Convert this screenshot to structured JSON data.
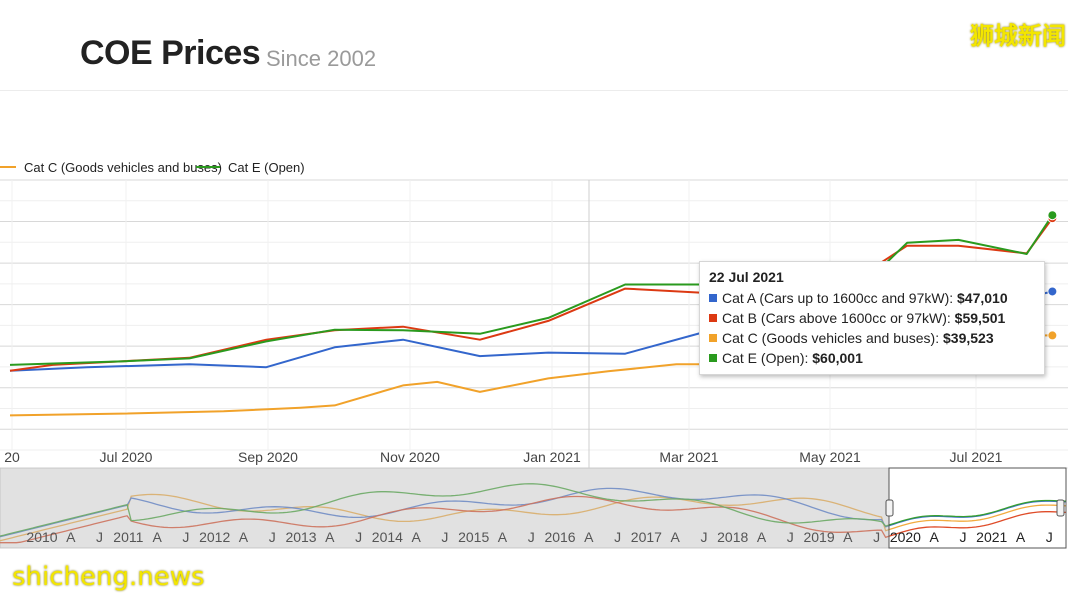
{
  "header": {
    "title": "COE Prices",
    "subtitle": "Since 2002"
  },
  "watermark": {
    "cn": "狮城新闻",
    "en": "shicheng.news"
  },
  "colors": {
    "cat_a": "#3366cc",
    "cat_b": "#dc3912",
    "cat_c": "#f1a22a",
    "cat_e": "#2a9a1e"
  },
  "legend": {
    "items": [
      {
        "label": "Cat C (Goods vehicles and buses)",
        "color": "#f1a22a"
      },
      {
        "label": "Cat E (Open)",
        "color": "#2a9a1e"
      }
    ]
  },
  "tooltip": {
    "date": "22 Jul 2021",
    "rows": [
      {
        "label": "Cat A (Cars up to 1600cc and 97kW):",
        "value": "$47,010",
        "color": "#3366cc"
      },
      {
        "label": "Cat B (Cars above 1600cc or 97kW):",
        "value": "$59,501",
        "color": "#dc3912"
      },
      {
        "label": "Cat C (Goods vehicles and buses):",
        "value": "$39,523",
        "color": "#f1a22a"
      },
      {
        "label": "Cat E (Open):",
        "value": "$60,001",
        "color": "#2a9a1e"
      }
    ]
  },
  "chart_data": {
    "type": "line",
    "title": "COE Prices",
    "subtitle": "Since 2002",
    "x_axis_labels": [
      "20",
      "Jul 2020",
      "Sep 2020",
      "Nov 2020",
      "Jan 2021",
      "Mar 2021",
      "May 2021",
      "Jul 2021"
    ],
    "x_axis_note": "dates as fractional years",
    "y_unit": "SGD",
    "ylim": [
      20000,
      66000
    ],
    "grid": true,
    "legend_position": "top",
    "series": [
      {
        "name": "Cat A (Cars up to 1600cc and 97kW)",
        "color": "#3366cc",
        "x": [
          2020.33,
          2020.42,
          2020.54,
          2020.63,
          2020.71,
          2020.79,
          2020.88,
          2020.96,
          2021.05,
          2021.14,
          2021.21,
          2021.26,
          2021.33,
          2021.38,
          2021.44,
          2021.52,
          2021.55
        ],
        "y": [
          33500,
          34100,
          34600,
          34100,
          37500,
          38800,
          36000,
          36600,
          36400,
          40000,
          40600,
          40600,
          40800,
          39800,
          40600,
          46000,
          47010
        ]
      },
      {
        "name": "Cat B (Cars above 1600cc or 97kW)",
        "color": "#dc3912",
        "x": [
          2020.33,
          2020.38,
          2020.54,
          2020.63,
          2020.71,
          2020.79,
          2020.88,
          2020.96,
          2021.05,
          2021.14,
          2021.21,
          2021.26,
          2021.38,
          2021.44,
          2021.52,
          2021.55
        ],
        "y": [
          33500,
          34500,
          35700,
          38800,
          40400,
          41000,
          38800,
          42000,
          47500,
          46800,
          44000,
          43500,
          54800,
          54800,
          53500,
          59501
        ]
      },
      {
        "name": "Cat C (Goods vehicles and buses)",
        "color": "#f1a22a",
        "x": [
          2020.33,
          2020.46,
          2020.58,
          2020.67,
          2020.71,
          2020.79,
          2020.83,
          2020.88,
          2020.96,
          2021.03,
          2021.11,
          2021.15,
          2021.21,
          2021.26,
          2021.33,
          2021.38,
          2021.44,
          2021.52,
          2021.55
        ],
        "y": [
          25900,
          26200,
          26600,
          27200,
          27600,
          31000,
          31600,
          29900,
          32200,
          33400,
          34600,
          34600,
          42000,
          38000,
          38600,
          39400,
          40000,
          39500,
          39523
        ]
      },
      {
        "name": "Cat E (Open)",
        "color": "#2a9a1e",
        "x": [
          2020.33,
          2020.46,
          2020.54,
          2020.63,
          2020.71,
          2020.79,
          2020.88,
          2020.96,
          2021.05,
          2021.14,
          2021.21,
          2021.26,
          2021.33,
          2021.38,
          2021.44,
          2021.52,
          2021.55
        ],
        "y": [
          34500,
          35100,
          35600,
          38500,
          40500,
          40400,
          39800,
          42500,
          48200,
          48200,
          48400,
          46000,
          48300,
          55300,
          55800,
          53400,
          60001
        ]
      }
    ],
    "navigator": {
      "x_axis_labels": [
        "2010",
        "A",
        "J",
        "2011",
        "A",
        "J",
        "2012",
        "A",
        "J",
        "2013",
        "A",
        "J",
        "2014",
        "A",
        "J",
        "2015",
        "A",
        "J",
        "2016",
        "A",
        "J",
        "2017",
        "A",
        "J",
        "2018",
        "A",
        "J",
        "2019",
        "A",
        "J",
        "2020",
        "A",
        "J",
        "2021",
        "A",
        "J"
      ],
      "selected_range": [
        "2020",
        "Jul 2021"
      ]
    }
  }
}
